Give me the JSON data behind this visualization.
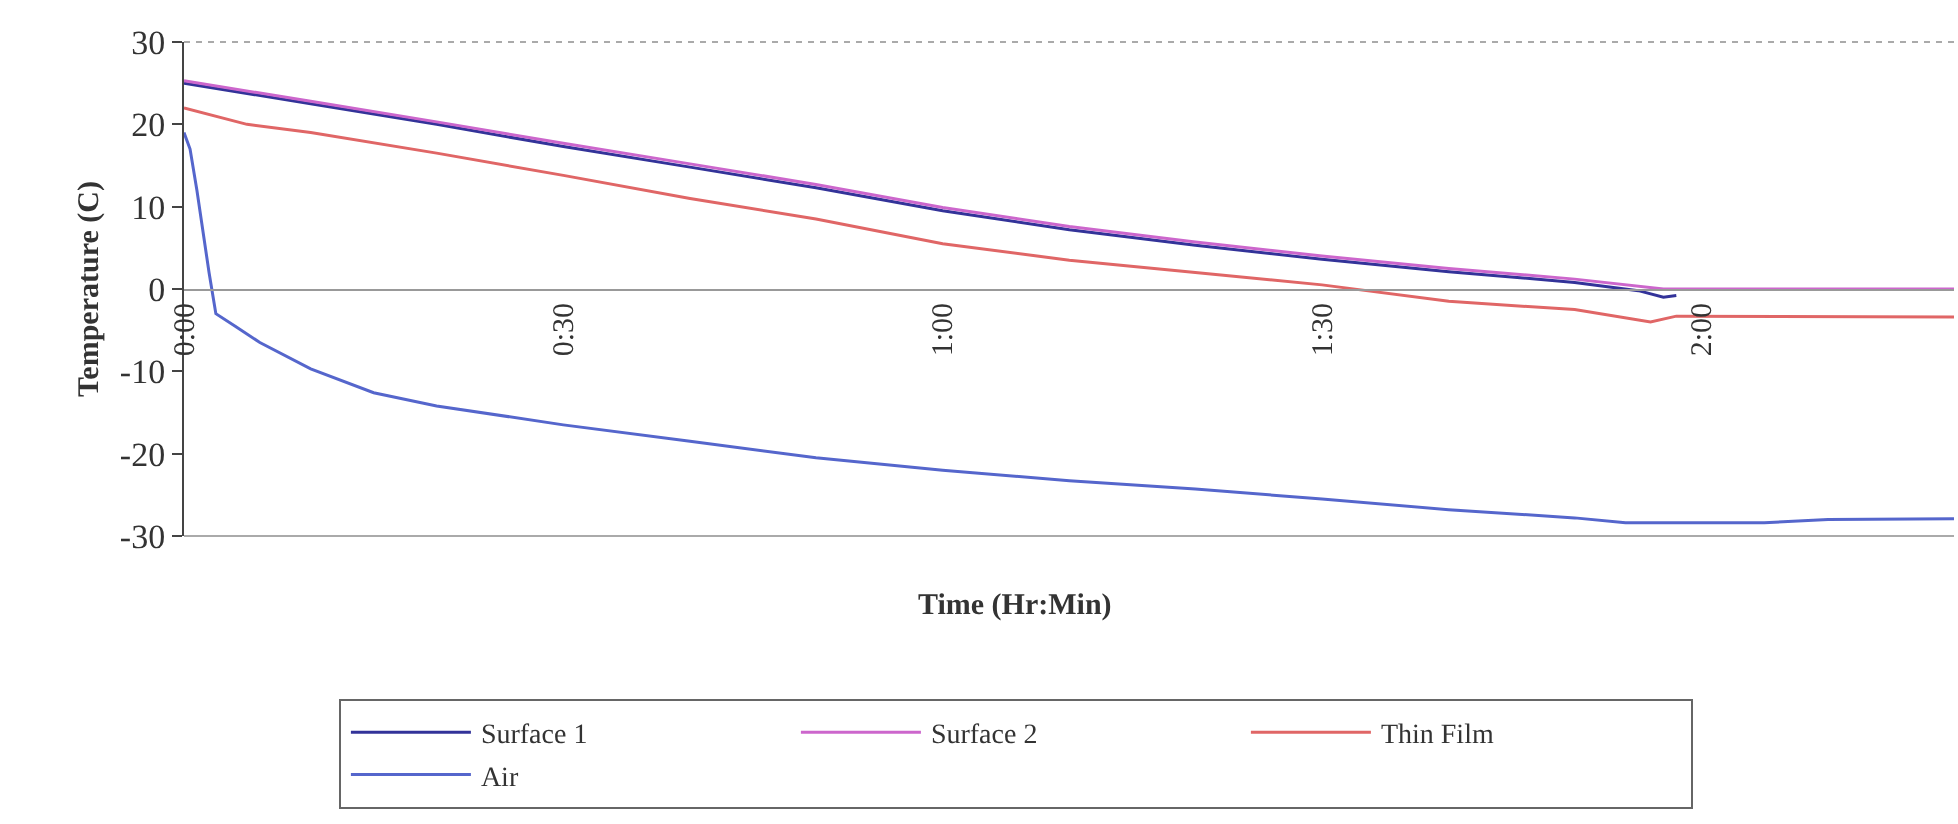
{
  "chart_data": {
    "type": "line",
    "xlabel": "Time (Hr:Min)",
    "ylabel": "Temperature (C)",
    "xlim": [
      0,
      2.333
    ],
    "xticks": [
      {
        "value": 0,
        "label": "0:00"
      },
      {
        "value": 0.5,
        "label": "0:30"
      },
      {
        "value": 1,
        "label": "1:00"
      },
      {
        "value": 1.5,
        "label": "1:30"
      },
      {
        "value": 2,
        "label": "2:00"
      }
    ],
    "ylim": [
      -30,
      30
    ],
    "yticks": [
      -30,
      -20,
      -10,
      0,
      10,
      20,
      30
    ],
    "legend": "bottom",
    "marker": "none",
    "line_style": "solid",
    "series": [
      {
        "name": "Surface 1",
        "color": "#333399",
        "x": [
          0,
          0.167,
          0.333,
          0.5,
          0.667,
          0.833,
          1,
          1.167,
          1.333,
          1.5,
          1.667,
          1.833,
          1.917,
          1.95,
          1.967
        ],
        "values": [
          25,
          22.5,
          20,
          17.3,
          14.8,
          12.3,
          9.5,
          7.2,
          5.3,
          3.6,
          2.1,
          0.8,
          -0.2,
          -1,
          -0.8
        ]
      },
      {
        "name": "Surface 2",
        "color": "#cc66cc",
        "x": [
          0,
          0.167,
          0.333,
          0.5,
          0.667,
          0.833,
          1,
          1.167,
          1.333,
          1.5,
          1.667,
          1.833,
          1.95,
          2.333
        ],
        "values": [
          25.3,
          22.8,
          20.3,
          17.7,
          15.2,
          12.7,
          9.9,
          7.6,
          5.7,
          4,
          2.5,
          1.2,
          0,
          0
        ]
      },
      {
        "name": "Thin Film",
        "color": "#e06666",
        "x": [
          0,
          0.083,
          0.167,
          0.333,
          0.5,
          0.667,
          0.833,
          1,
          1.167,
          1.333,
          1.5,
          1.667,
          1.833,
          1.933,
          1.967,
          2.333
        ],
        "values": [
          22,
          20,
          19,
          16.5,
          13.8,
          11,
          8.5,
          5.5,
          3.5,
          2,
          0.5,
          -1.5,
          -2.5,
          -4,
          -3.3,
          -3.4
        ]
      },
      {
        "name": "Air",
        "color": "#5566cc",
        "x": [
          0,
          0.008,
          0.017,
          0.033,
          0.042,
          0.067,
          0.1,
          0.167,
          0.25,
          0.333,
          0.5,
          0.667,
          0.833,
          1,
          1.167,
          1.333,
          1.5,
          1.667,
          1.833,
          1.9,
          2.083,
          2.167,
          2.333
        ],
        "values": [
          19,
          17,
          12,
          2,
          -3,
          -4.5,
          -6.5,
          -9.7,
          -12.6,
          -14.2,
          -16.5,
          -18.5,
          -20.5,
          -22,
          -23.3,
          -24.3,
          -25.5,
          -26.8,
          -27.8,
          -28.4,
          -28.4,
          -28,
          -27.9
        ]
      }
    ]
  }
}
